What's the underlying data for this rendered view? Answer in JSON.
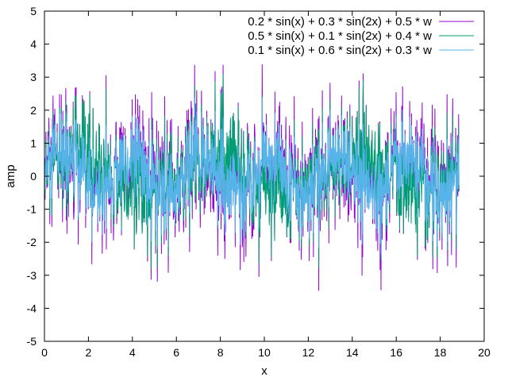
{
  "chart_data": {
    "type": "line",
    "title": "",
    "xlabel": "x",
    "ylabel": "amp",
    "xlim": [
      0,
      20
    ],
    "ylim": [
      -5,
      5
    ],
    "x_ticks": [
      "0",
      "2",
      "4",
      "6",
      "8",
      "10",
      "12",
      "14",
      "16",
      "18",
      "20"
    ],
    "y_ticks": [
      "-5",
      "-4",
      "-3",
      "-2",
      "-1",
      "0",
      "1",
      "2",
      "3",
      "4",
      "5"
    ],
    "grid": false,
    "legend": "top-right",
    "x_range": [
      0,
      18.85
    ],
    "series": [
      {
        "name": "0.2 * sin(x) + 0.3 * sin(2x) + 0.5 * w",
        "color": "#9400d3",
        "a": 0.2,
        "b": 0.3,
        "noise": 0.5
      },
      {
        "name": "0.5 * sin(x) + 0.1 * sin(2x) + 0.4 * w",
        "color": "#009e73",
        "a": 0.5,
        "b": 0.1,
        "noise": 0.4
      },
      {
        "name": "0.1 * sin(x) + 0.6 * sin(2x) + 0.3 * w",
        "color": "#56b4e9",
        "a": 0.1,
        "b": 0.6,
        "noise": 0.3
      }
    ]
  }
}
